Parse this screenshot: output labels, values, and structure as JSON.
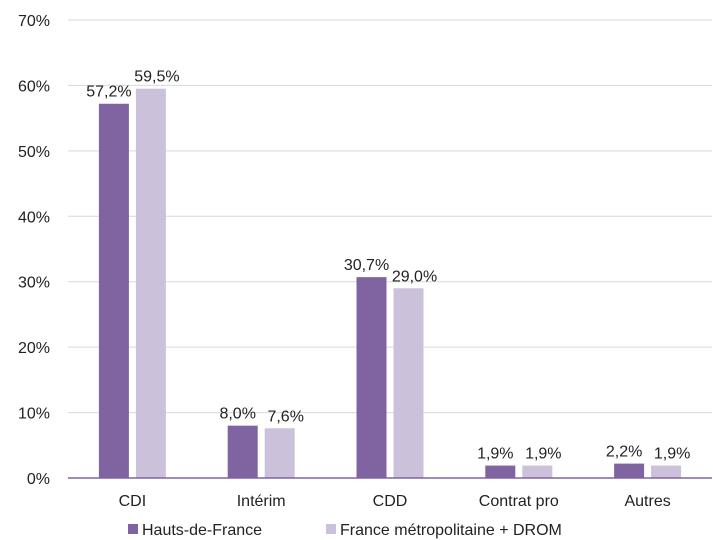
{
  "chart_data": {
    "type": "bar",
    "categories": [
      "CDI",
      "Intérim",
      "CDD",
      "Contrat pro",
      "Autres"
    ],
    "series": [
      {
        "name": "Hauts-de-France",
        "values": [
          57.2,
          8.0,
          30.7,
          1.9,
          2.2
        ],
        "labels": [
          "57,2%",
          "8,0%",
          "30,7%",
          "1,9%",
          "2,2%"
        ],
        "color": "#8064a2"
      },
      {
        "name": "France métropolitaine + DROM",
        "values": [
          59.5,
          7.6,
          29.0,
          1.9,
          1.9
        ],
        "labels": [
          "59,5%",
          "7,6%",
          "29,0%",
          "1,9%",
          "1,9%"
        ],
        "color": "#ccc1da"
      }
    ],
    "yticks": [
      "0%",
      "10%",
      "20%",
      "30%",
      "40%",
      "50%",
      "60%",
      "70%"
    ],
    "ylim": [
      0,
      70
    ],
    "grid": true,
    "legend_position": "bottom"
  }
}
